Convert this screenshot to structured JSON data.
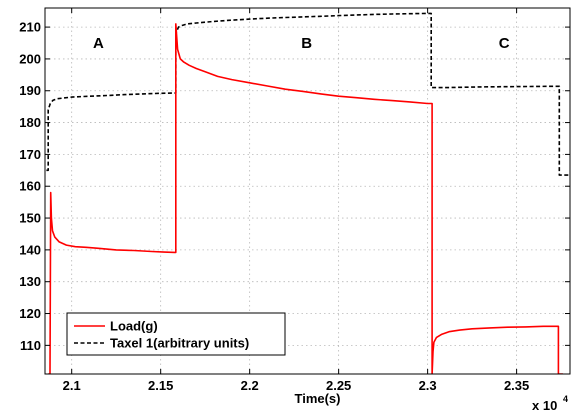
{
  "chart_data": {
    "type": "line",
    "title": "",
    "xlabel": "Time(s)",
    "ylabel": "",
    "x_exponent_label": "x 10",
    "x_exponent_power": "4",
    "xlim": [
      2.085,
      2.38
    ],
    "ylim": [
      101,
      216
    ],
    "x_ticks": [
      2.1,
      2.15,
      2.2,
      2.25,
      2.3,
      2.35
    ],
    "x_tick_labels": [
      "2.1",
      "2.15",
      "2.2",
      "2.25",
      "2.3",
      "2.35"
    ],
    "y_ticks": [
      110,
      120,
      130,
      140,
      150,
      160,
      170,
      180,
      190,
      200,
      210
    ],
    "y_tick_labels": [
      "110",
      "120",
      "130",
      "140",
      "150",
      "160",
      "170",
      "180",
      "190",
      "200",
      "210"
    ],
    "grid": true,
    "legend_position": "bottom-left",
    "region_labels": [
      {
        "text": "A",
        "x": 2.115,
        "y": 205
      },
      {
        "text": "B",
        "x": 2.232,
        "y": 205
      },
      {
        "text": "C",
        "x": 2.343,
        "y": 205
      }
    ],
    "series": [
      {
        "name": "Load(g)",
        "color": "#ff0000",
        "style": "solid",
        "x": [
          2.0868,
          2.0878,
          2.0882,
          2.0886,
          2.0892,
          2.0905,
          2.093,
          2.097,
          2.102,
          2.108,
          2.115,
          2.125,
          2.135,
          2.145,
          2.152,
          2.158,
          2.1585,
          2.1585,
          2.159,
          2.1595,
          2.161,
          2.163,
          2.166,
          2.17,
          2.175,
          2.182,
          2.19,
          2.2,
          2.21,
          2.22,
          2.23,
          2.24,
          2.25,
          2.26,
          2.27,
          2.28,
          2.29,
          2.3,
          2.3025,
          2.3025,
          2.303,
          2.3035,
          2.305,
          2.308,
          2.312,
          2.318,
          2.325,
          2.335,
          2.345,
          2.355,
          2.365,
          2.372,
          2.3735,
          2.3735,
          2.376
        ],
        "y": [
          101,
          101,
          158,
          150,
          146,
          144,
          142.5,
          141.5,
          141,
          140.8,
          140.5,
          140,
          139.8,
          139.5,
          139.3,
          139.2,
          139.2,
          211,
          207,
          203,
          200,
          199,
          198,
          197,
          196,
          194.5,
          193.5,
          192.5,
          191.5,
          190.5,
          189.8,
          189,
          188.3,
          187.8,
          187.3,
          186.9,
          186.5,
          186,
          186,
          101,
          108,
          111,
          112.5,
          113.5,
          114.3,
          114.8,
          115.2,
          115.5,
          115.7,
          115.8,
          116,
          116,
          116,
          101,
          101
        ]
      },
      {
        "name": "Taxel 1(arbitrary units)",
        "color": "#000000",
        "style": "dashed",
        "x": [
          2.0858,
          2.0858,
          2.0868,
          2.0868,
          2.088,
          2.0895,
          2.092,
          2.1,
          2.11,
          2.12,
          2.13,
          2.14,
          2.15,
          2.1585,
          2.1585,
          2.16,
          2.162,
          2.165,
          2.17,
          2.18,
          2.19,
          2.2,
          2.21,
          2.22,
          2.23,
          2.24,
          2.25,
          2.26,
          2.27,
          2.28,
          2.29,
          2.3,
          2.302,
          2.302,
          2.31,
          2.33,
          2.35,
          2.37,
          2.374,
          2.374,
          2.38
        ],
        "y": [
          165,
          165,
          165,
          184,
          186,
          187,
          187.5,
          188,
          188.3,
          188.5,
          188.8,
          189,
          189.2,
          189.3,
          208,
          210,
          210.5,
          211,
          211.3,
          211.8,
          212.2,
          212.5,
          212.8,
          213,
          213.2,
          213.4,
          213.6,
          213.8,
          214,
          214.1,
          214.2,
          214.3,
          214.3,
          191,
          191,
          191.2,
          191.3,
          191.4,
          191.4,
          163.5,
          163.5
        ]
      }
    ]
  }
}
